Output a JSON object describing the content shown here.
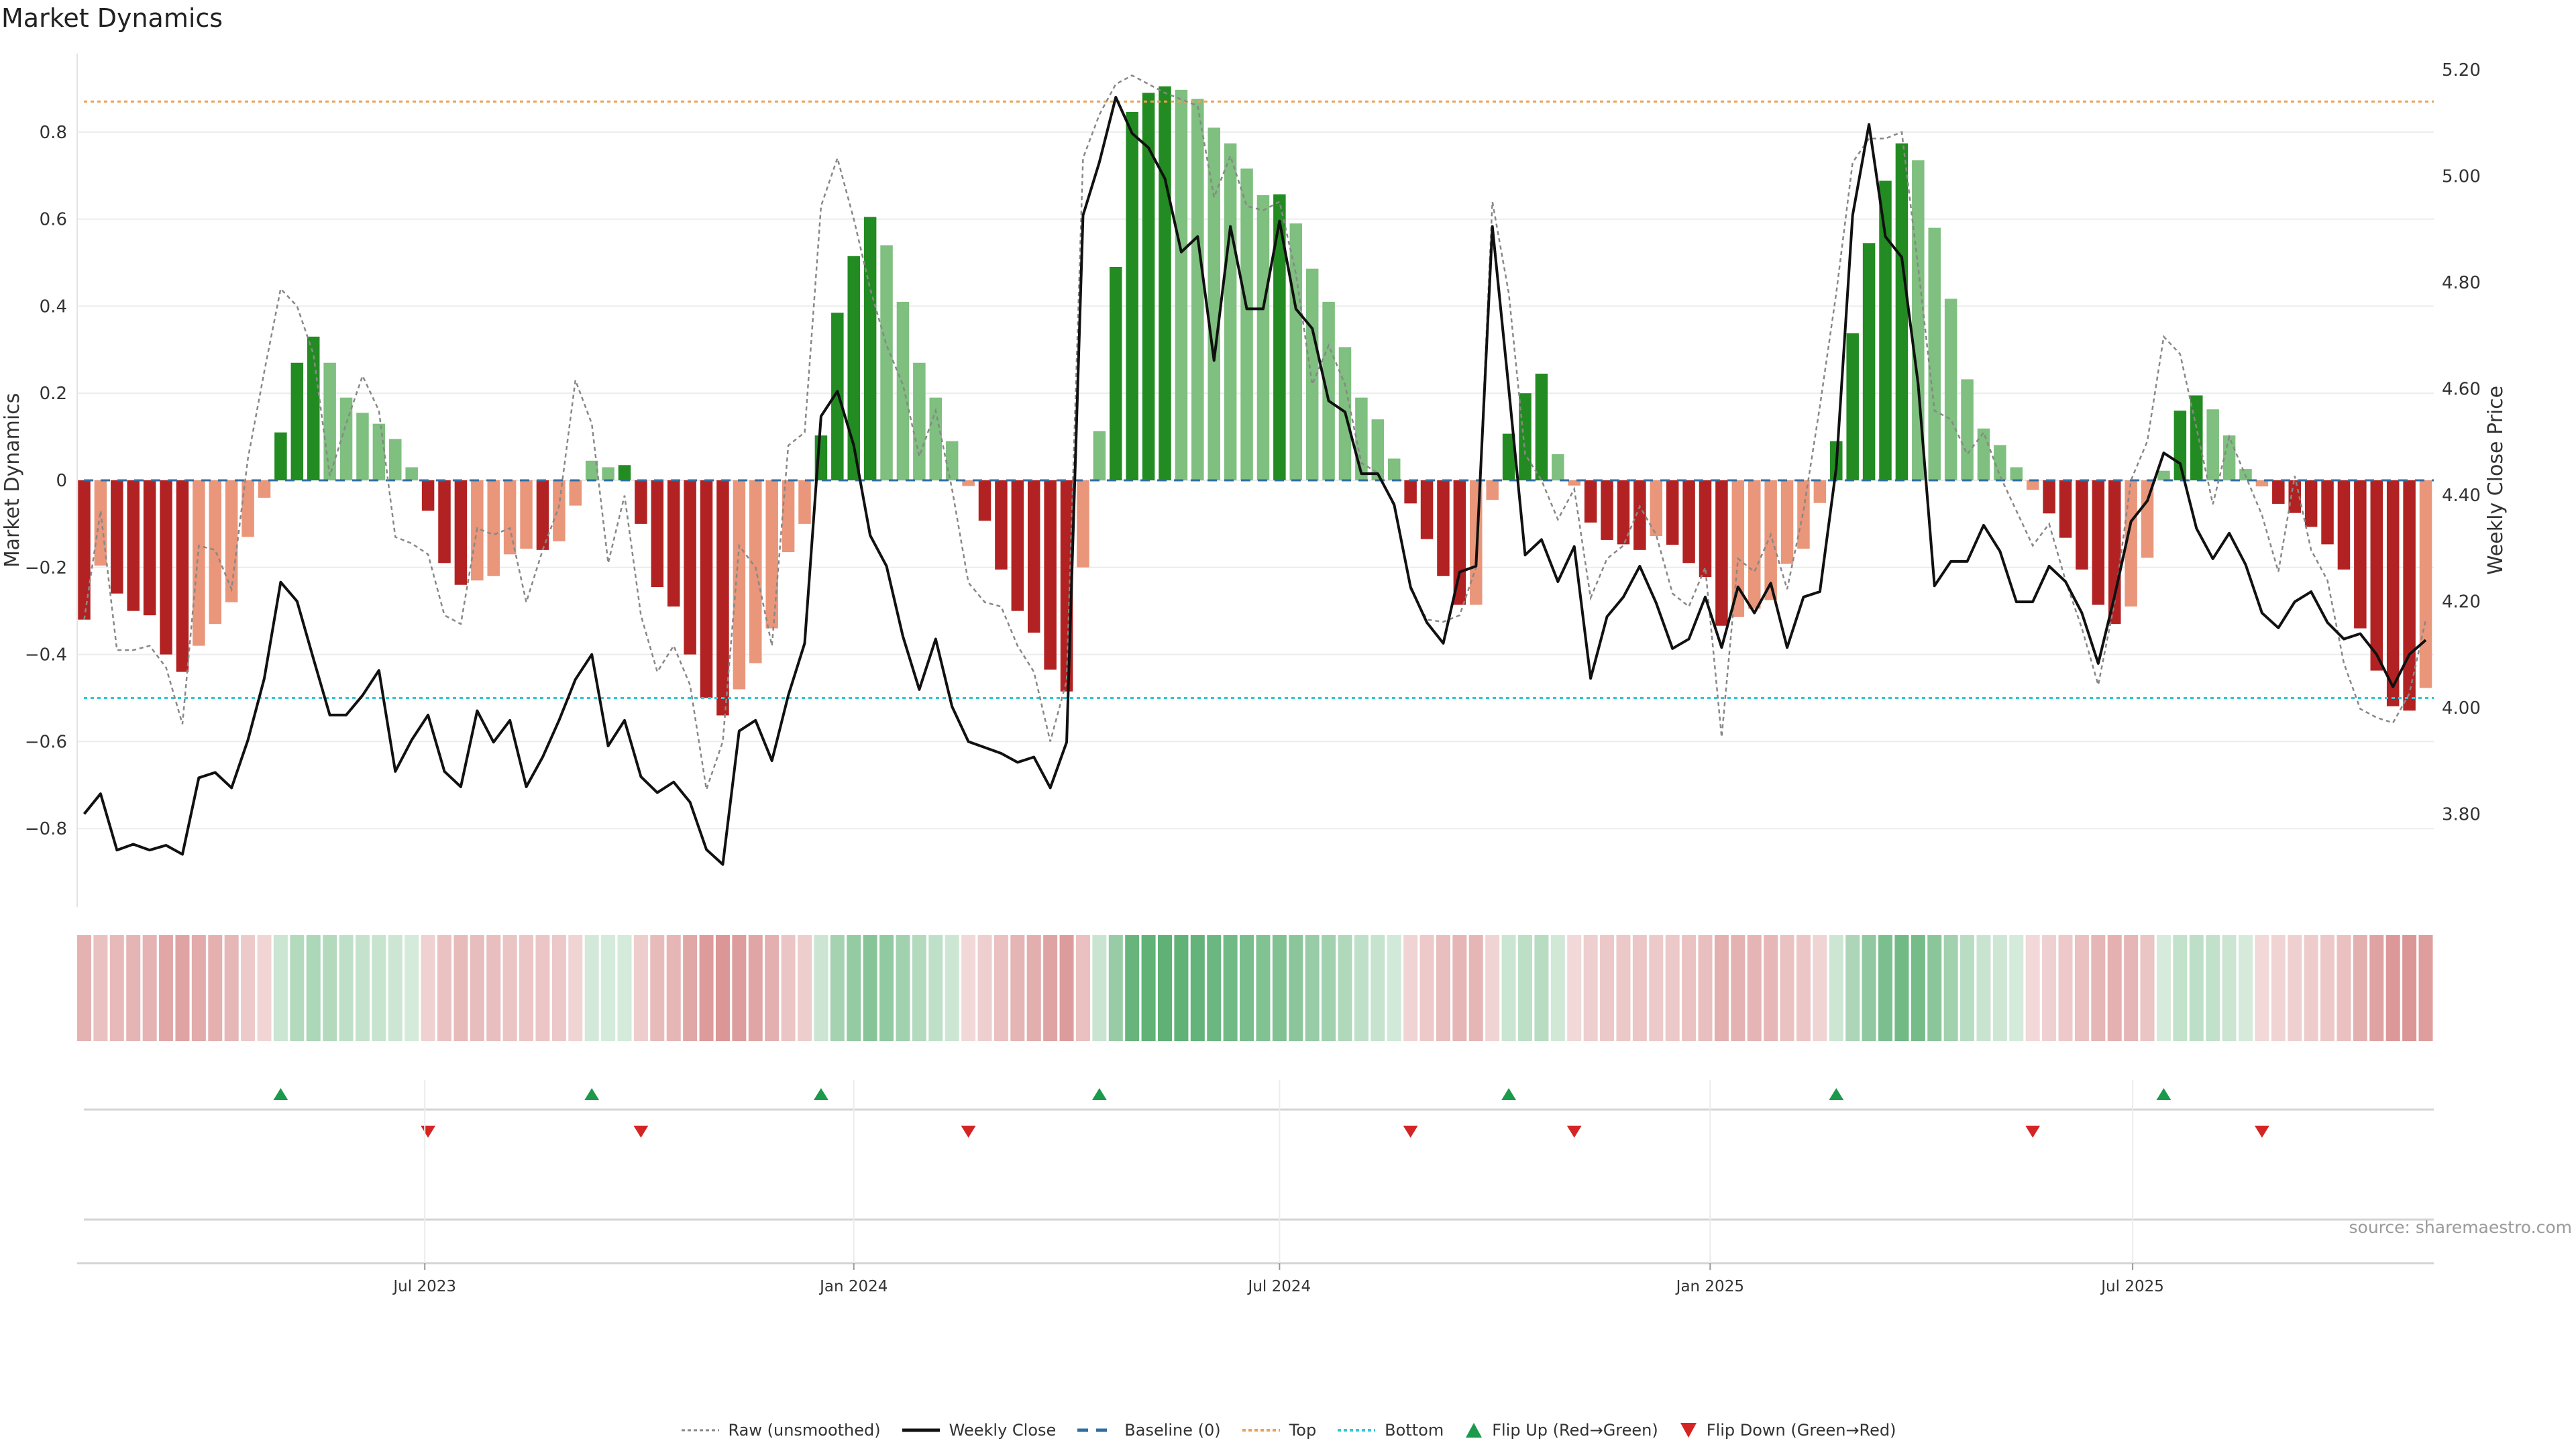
{
  "title": "Market Dynamics",
  "source": "source: sharemaestro.com",
  "chart_data": {
    "type": "bar",
    "title": "Market Dynamics",
    "ylabel": "Market Dynamics",
    "y2label": "Weekly Close Price",
    "ylim": [
      -0.98,
      0.98
    ],
    "y2lim": [
      3.625,
      5.23
    ],
    "yticks": [
      -0.8,
      -0.6,
      -0.4,
      -0.2,
      0,
      0.2,
      0.4,
      0.6,
      0.8
    ],
    "ytick_labels": [
      "−0.8",
      "−0.6",
      "−0.4",
      "−0.2",
      "0",
      "0.2",
      "0.4",
      "0.6",
      "0.8"
    ],
    "y2ticks": [
      3.8,
      4.0,
      4.2,
      4.4,
      4.6,
      4.8,
      5.0,
      5.2
    ],
    "y2tick_labels": [
      "3.80",
      "4.00",
      "4.20",
      "4.40",
      "4.60",
      "4.80",
      "5.00",
      "5.20"
    ],
    "x_unit": "week index",
    "xticks": [
      {
        "label": "Jul 2023",
        "week": 20.8
      },
      {
        "label": "Jan 2024",
        "week": 47.0
      },
      {
        "label": "Jul 2024",
        "week": 73.0
      },
      {
        "label": "Jan 2025",
        "week": 99.3
      },
      {
        "label": "Jul 2025",
        "week": 125.1
      }
    ],
    "thresholds": {
      "baseline": 0,
      "top": 0.87,
      "bottom": -0.5
    },
    "colors": {
      "strong_up": "#228b22",
      "weak_up": "#7fbf7f",
      "strong_down": "#b22222",
      "weak_down": "#e9967a",
      "raw": "#888888",
      "close": "#111111",
      "baseline": "#2f6ea3",
      "top": "#f0a050",
      "bottom": "#30c8d8",
      "flip_up": "#1a9a4a",
      "flip_down": "#d42424"
    },
    "series": [
      {
        "name": "Market Dynamics (smoothed)",
        "axis": "left",
        "values": [
          -0.32,
          -0.196,
          -0.26,
          -0.3,
          -0.31,
          -0.4,
          -0.44,
          -0.38,
          -0.33,
          -0.28,
          -0.13,
          -0.04,
          0.11,
          0.27,
          0.33,
          0.27,
          0.19,
          0.155,
          0.13,
          0.095,
          0.03,
          -0.07,
          -0.19,
          -0.24,
          -0.23,
          -0.22,
          -0.17,
          -0.157,
          -0.16,
          -0.14,
          -0.058,
          0.045,
          0.03,
          0.035,
          -0.1,
          -0.245,
          -0.29,
          -0.4,
          -0.5,
          -0.54,
          -0.48,
          -0.42,
          -0.34,
          -0.165,
          -0.1,
          0.103,
          0.385,
          0.515,
          0.605,
          0.54,
          0.41,
          0.27,
          0.19,
          0.09,
          -0.013,
          -0.093,
          -0.205,
          -0.3,
          -0.35,
          -0.435,
          -0.485,
          -0.2,
          0.113,
          0.49,
          0.846,
          0.89,
          0.905,
          0.897,
          0.876,
          0.81,
          0.774,
          0.716,
          0.655,
          0.657,
          0.59,
          0.486,
          0.41,
          0.306,
          0.19,
          0.14,
          0.05,
          -0.053,
          -0.135,
          -0.22,
          -0.286,
          -0.286,
          -0.045,
          0.107,
          0.2,
          0.245,
          0.06,
          -0.012,
          -0.097,
          -0.137,
          -0.147,
          -0.16,
          -0.128,
          -0.148,
          -0.19,
          -0.222,
          -0.334,
          -0.314,
          -0.295,
          -0.275,
          -0.192,
          -0.157,
          -0.052,
          0.09,
          0.338,
          0.545,
          0.688,
          0.774,
          0.735,
          0.58,
          0.417,
          0.232,
          0.119,
          0.081,
          0.03,
          -0.022,
          -0.076,
          -0.132,
          -0.205,
          -0.286,
          -0.33,
          -0.29,
          -0.178,
          0.022,
          0.16,
          0.195,
          0.163,
          0.103,
          0.026,
          -0.014,
          -0.054,
          -0.075,
          -0.107,
          -0.147,
          -0.205,
          -0.34,
          -0.437,
          -0.519,
          -0.529,
          -0.477
        ]
      },
      {
        "name": "Raw (unsmoothed)",
        "axis": "left",
        "values": [
          -0.32,
          -0.07,
          -0.39,
          -0.39,
          -0.38,
          -0.43,
          -0.56,
          -0.15,
          -0.16,
          -0.25,
          0.05,
          0.25,
          0.44,
          0.4,
          0.29,
          0.01,
          0.13,
          0.24,
          0.16,
          -0.13,
          -0.145,
          -0.17,
          -0.31,
          -0.33,
          -0.11,
          -0.125,
          -0.11,
          -0.28,
          -0.16,
          -0.06,
          0.23,
          0.13,
          -0.19,
          -0.035,
          -0.31,
          -0.44,
          -0.38,
          -0.47,
          -0.71,
          -0.6,
          -0.15,
          -0.2,
          -0.38,
          0.08,
          0.11,
          0.63,
          0.74,
          0.6,
          0.44,
          0.31,
          0.22,
          0.055,
          0.16,
          -0.02,
          -0.235,
          -0.28,
          -0.29,
          -0.38,
          -0.44,
          -0.6,
          -0.46,
          0.74,
          0.84,
          0.91,
          0.93,
          0.91,
          0.89,
          0.875,
          0.86,
          0.65,
          0.745,
          0.63,
          0.62,
          0.64,
          0.475,
          0.22,
          0.31,
          0.22,
          0.04,
          0.017,
          -0.06,
          -0.25,
          -0.32,
          -0.325,
          -0.31,
          -0.2,
          0.64,
          0.43,
          0.06,
          0.0,
          -0.09,
          -0.02,
          -0.27,
          -0.18,
          -0.15,
          -0.06,
          -0.125,
          -0.26,
          -0.29,
          -0.2,
          -0.59,
          -0.18,
          -0.21,
          -0.125,
          -0.25,
          -0.07,
          0.17,
          0.43,
          0.73,
          0.785,
          0.785,
          0.8,
          0.49,
          0.16,
          0.14,
          0.06,
          0.11,
          0.01,
          -0.07,
          -0.15,
          -0.1,
          -0.23,
          -0.34,
          -0.47,
          -0.28,
          0.0,
          0.09,
          0.33,
          0.29,
          0.12,
          -0.055,
          0.1,
          0.01,
          -0.08,
          -0.21,
          0.01,
          -0.16,
          -0.23,
          -0.42,
          -0.525,
          -0.545,
          -0.557,
          -0.49,
          -0.32
        ]
      },
      {
        "name": "Weekly Close",
        "axis": "right",
        "values": [
          3.8,
          3.838,
          3.732,
          3.743,
          3.732,
          3.741,
          3.724,
          3.868,
          3.878,
          3.849,
          3.939,
          4.055,
          4.236,
          4.2,
          4.092,
          3.986,
          3.986,
          4.023,
          4.07,
          3.88,
          3.939,
          3.986,
          3.88,
          3.851,
          3.994,
          3.935,
          3.976,
          3.851,
          3.907,
          3.976,
          4.053,
          4.1,
          3.928,
          3.976,
          3.87,
          3.84,
          3.86,
          3.822,
          3.733,
          3.705,
          3.956,
          3.976,
          3.9,
          4.023,
          4.121,
          4.548,
          4.595,
          4.493,
          4.324,
          4.266,
          4.134,
          4.034,
          4.129,
          4.002,
          3.936,
          3.925,
          3.914,
          3.897,
          3.907,
          3.849,
          3.935,
          4.926,
          5.026,
          5.148,
          5.08,
          5.053,
          4.995,
          4.857,
          4.886,
          4.653,
          4.905,
          4.75,
          4.75,
          4.915,
          4.75,
          4.713,
          4.577,
          4.556,
          4.44,
          4.44,
          4.382,
          4.227,
          4.16,
          4.121,
          4.255,
          4.266,
          4.905,
          4.6,
          4.287,
          4.316,
          4.237,
          4.303,
          4.055,
          4.171,
          4.208,
          4.266,
          4.197,
          4.111,
          4.129,
          4.208,
          4.113,
          4.227,
          4.178,
          4.234,
          4.113,
          4.208,
          4.218,
          4.451,
          4.926,
          5.097,
          4.886,
          4.847,
          4.609,
          4.229,
          4.275,
          4.275,
          4.343,
          4.294,
          4.199,
          4.199,
          4.266,
          4.237,
          4.178,
          4.083,
          4.21,
          4.35,
          4.389,
          4.479,
          4.459,
          4.337,
          4.28,
          4.328,
          4.269,
          4.178,
          4.15,
          4.199,
          4.218,
          4.16,
          4.129,
          4.139,
          4.1,
          4.039,
          4.1,
          4.127
        ]
      }
    ],
    "legend": {
      "placement": "bottom-center",
      "entries": [
        "Raw (unsmoothed)",
        "Weekly Close",
        "Baseline (0)",
        "Top",
        "Bottom",
        "Flip Up (Red→Green)",
        "Flip Down (Green→Red)"
      ]
    }
  }
}
